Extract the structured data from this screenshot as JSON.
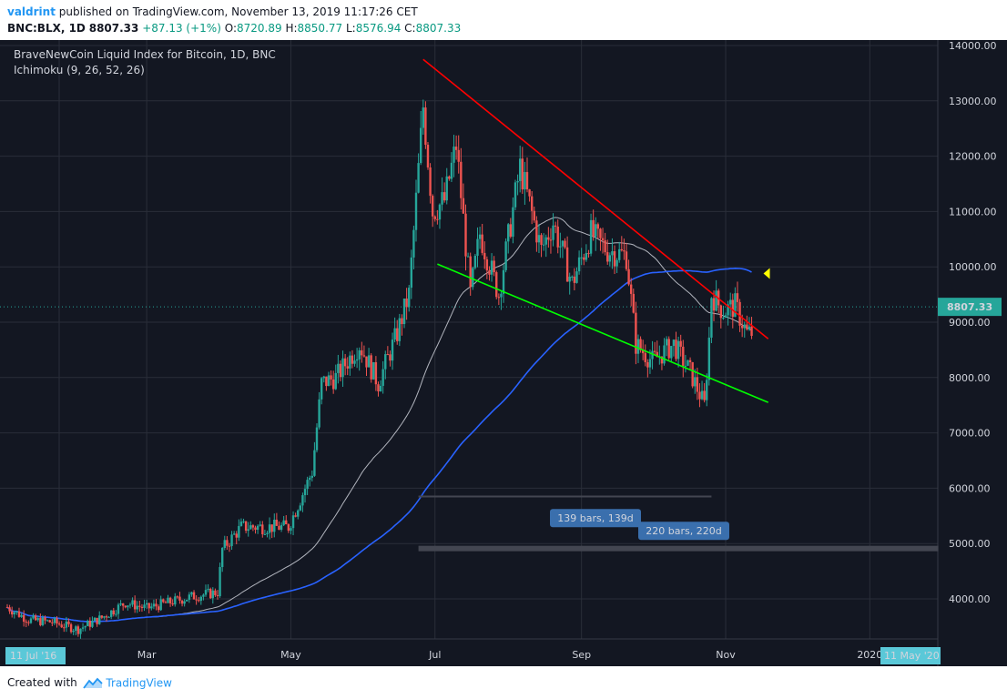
{
  "header": {
    "author": "valdrint",
    "published_text": "published on TradingView.com, November 13, 2019 11:17:26 CET",
    "symbol": "BNC:BLX, 1D",
    "last_price": "8807.33",
    "change": "+87.13 (+1%)",
    "o_label": "O:",
    "o_value": "8720.89",
    "h_label": "H:",
    "h_value": "8850.77",
    "l_label": "L:",
    "l_value": "8576.94",
    "c_label": "C:",
    "c_value": "8807.33"
  },
  "legend": {
    "title": "BraveNewCoin Liquid Index for Bitcoin, 1D, BNC",
    "indicator": "Ichimoku (9, 26, 52, 26)"
  },
  "footer": {
    "created_with": "Created with",
    "brand": "TradingView"
  },
  "colors": {
    "background": "#131722",
    "grid": "#2a2e39",
    "up": "#26a69a",
    "down": "#ef5350",
    "resistance_line": "#ff0000",
    "support_line": "#00ff00",
    "ma_white": "#b2b5be",
    "ma_blue": "#2962ff",
    "price_label_bg": "#26a69a",
    "marker_yellow": "#ffff00",
    "range_label_bg": "#3a6fad"
  },
  "chart_data": {
    "type": "candlestick",
    "title": "BraveNewCoin Liquid Index for Bitcoin, 1D, BNC",
    "ylim": [
      3300,
      14200
    ],
    "y_ticks": [
      "14000.00",
      "13000.00",
      "12000.00",
      "11000.00",
      "10000.00",
      "9000.00",
      "8000.00",
      "7000.00",
      "6000.00",
      "5000.00",
      "4000.00"
    ],
    "x_ticks": [
      "Mar",
      "May",
      "Jul",
      "Sep",
      "Nov",
      "2020"
    ],
    "x_start_label": "11 Jul '16",
    "x_end_label": "11 May '20",
    "last_price_label": "8807.33",
    "range_labels": [
      "139 bars, 139d",
      "220 bars, 220d"
    ],
    "close_series": [
      {
        "date": "2019-01-01",
        "close": 3850
      },
      {
        "date": "2019-01-10",
        "close": 3620
      },
      {
        "date": "2019-01-20",
        "close": 3580
      },
      {
        "date": "2019-01-31",
        "close": 3450
      },
      {
        "date": "2019-02-10",
        "close": 3660
      },
      {
        "date": "2019-02-20",
        "close": 3930
      },
      {
        "date": "2019-03-01",
        "close": 3830
      },
      {
        "date": "2019-03-10",
        "close": 3930
      },
      {
        "date": "2019-03-20",
        "close": 4040
      },
      {
        "date": "2019-03-31",
        "close": 4120
      },
      {
        "date": "2019-04-02",
        "close": 4900
      },
      {
        "date": "2019-04-10",
        "close": 5300
      },
      {
        "date": "2019-04-20",
        "close": 5300
      },
      {
        "date": "2019-04-30",
        "close": 5300
      },
      {
        "date": "2019-05-10",
        "close": 6300
      },
      {
        "date": "2019-05-14",
        "close": 7900
      },
      {
        "date": "2019-05-20",
        "close": 8000
      },
      {
        "date": "2019-05-30",
        "close": 8600
      },
      {
        "date": "2019-06-07",
        "close": 7900
      },
      {
        "date": "2019-06-15",
        "close": 8800
      },
      {
        "date": "2019-06-20",
        "close": 9500
      },
      {
        "date": "2019-06-26",
        "close": 12900
      },
      {
        "date": "2019-06-30",
        "close": 11000
      },
      {
        "date": "2019-07-05",
        "close": 11200
      },
      {
        "date": "2019-07-10",
        "close": 12200
      },
      {
        "date": "2019-07-16",
        "close": 9500
      },
      {
        "date": "2019-07-20",
        "close": 10600
      },
      {
        "date": "2019-07-28",
        "close": 9500
      },
      {
        "date": "2019-08-06",
        "close": 11800
      },
      {
        "date": "2019-08-15",
        "close": 10300
      },
      {
        "date": "2019-08-20",
        "close": 10800
      },
      {
        "date": "2019-08-28",
        "close": 9700
      },
      {
        "date": "2019-09-05",
        "close": 10600
      },
      {
        "date": "2019-09-12",
        "close": 10300
      },
      {
        "date": "2019-09-20",
        "close": 10200
      },
      {
        "date": "2019-09-24",
        "close": 8600
      },
      {
        "date": "2019-10-01",
        "close": 8300
      },
      {
        "date": "2019-10-10",
        "close": 8600
      },
      {
        "date": "2019-10-17",
        "close": 8100
      },
      {
        "date": "2019-10-23",
        "close": 7500
      },
      {
        "date": "2019-10-25",
        "close": 8700
      },
      {
        "date": "2019-10-26",
        "close": 9500
      },
      {
        "date": "2019-10-31",
        "close": 9200
      },
      {
        "date": "2019-11-05",
        "close": 9300
      },
      {
        "date": "2019-11-10",
        "close": 8800
      },
      {
        "date": "2019-11-13",
        "close": 8807.33
      }
    ]
  }
}
